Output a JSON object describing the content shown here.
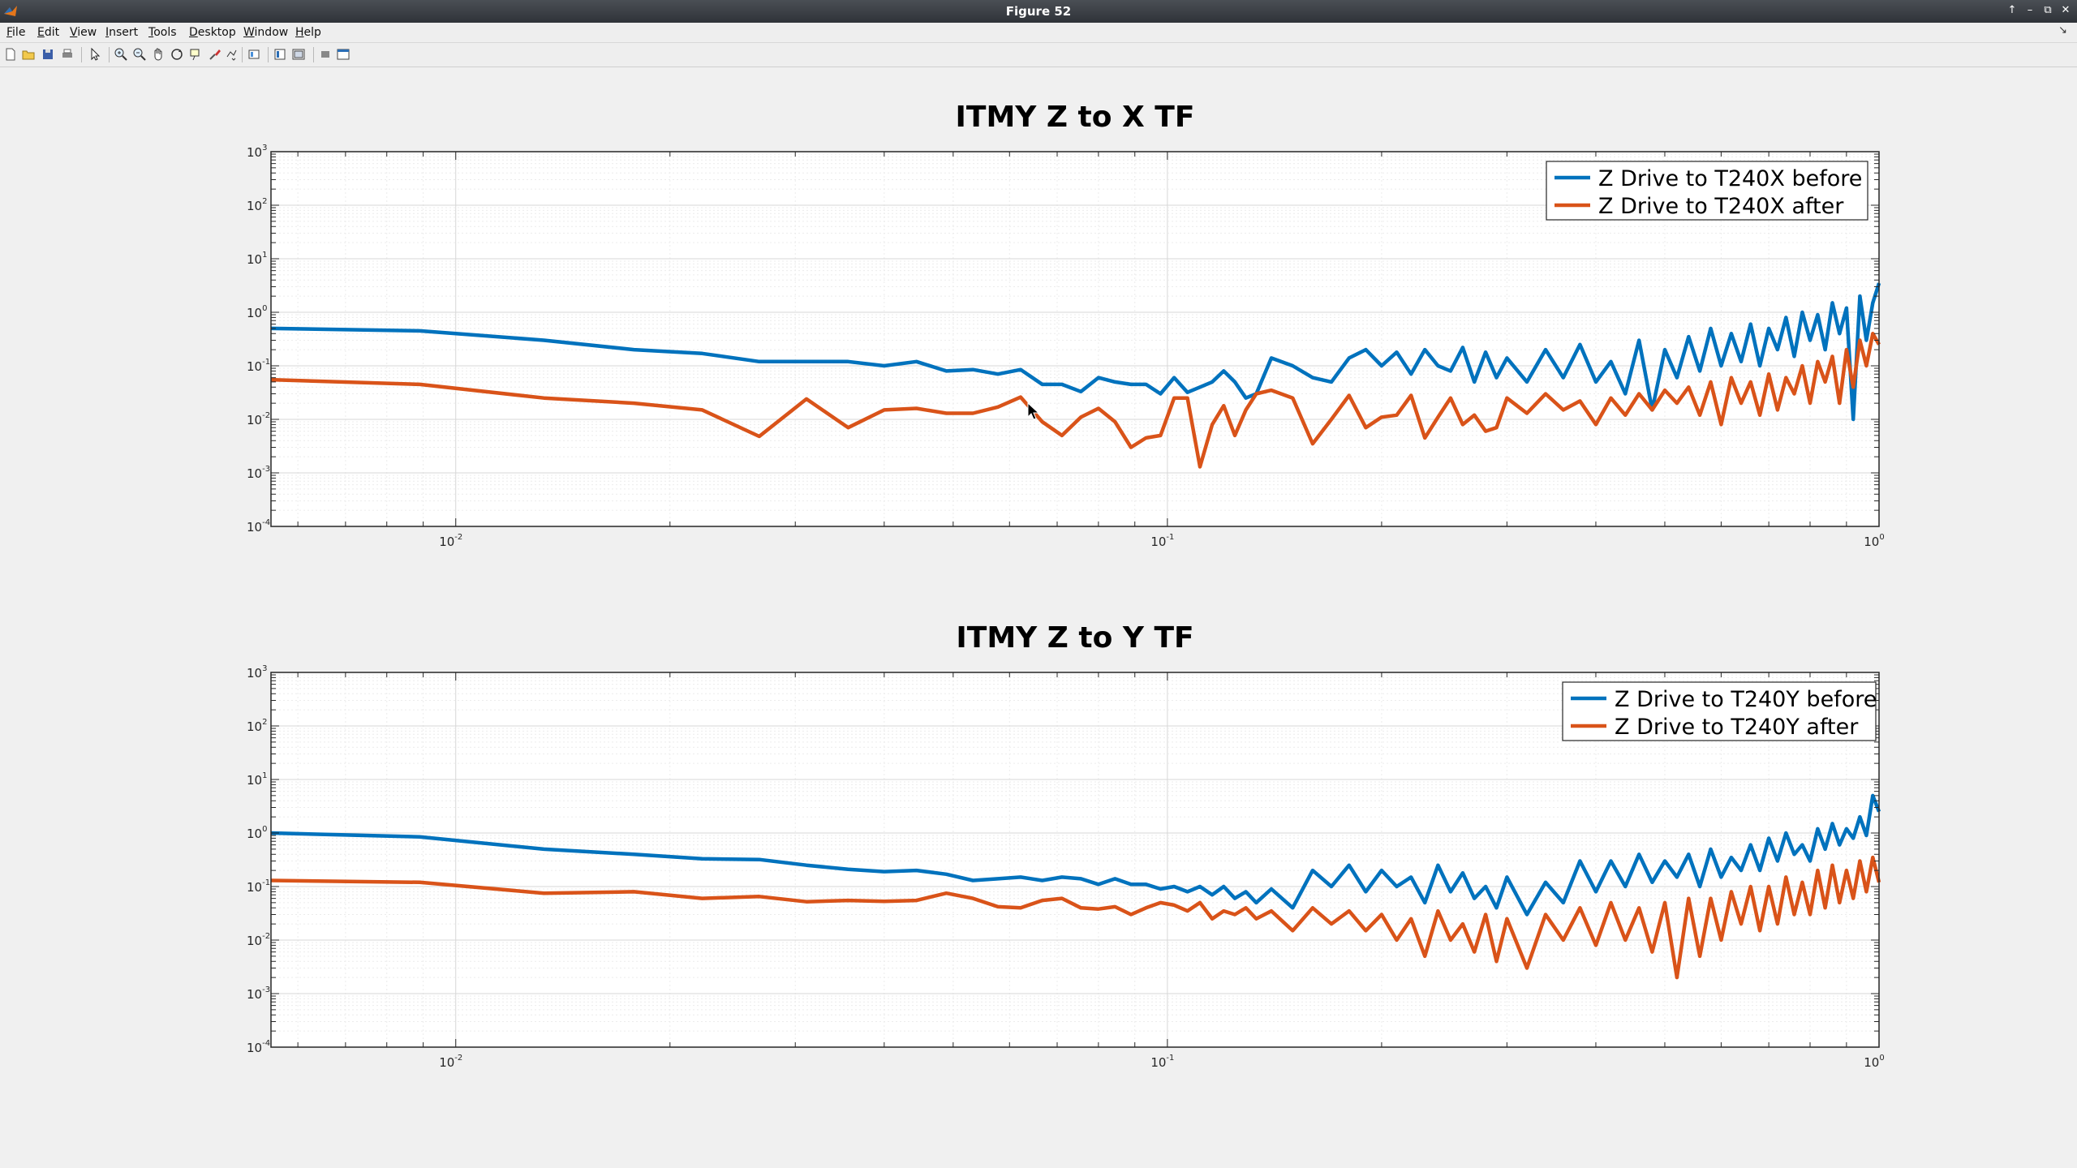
{
  "window": {
    "title": "Figure 52"
  },
  "menu": [
    {
      "label": "File",
      "u": "F",
      "rest": "ile"
    },
    {
      "label": "Edit",
      "u": "E",
      "rest": "dit"
    },
    {
      "label": "View",
      "u": "V",
      "rest": "iew"
    },
    {
      "label": "Insert",
      "u": "I",
      "rest": "nsert"
    },
    {
      "label": "Tools",
      "u": "T",
      "rest": "ools"
    },
    {
      "label": "Desktop",
      "u": "D",
      "rest": "esktop"
    },
    {
      "label": "Window",
      "u": "W",
      "rest": "indow"
    },
    {
      "label": "Help",
      "u": "H",
      "rest": "elp"
    }
  ],
  "toolbar_icons": [
    "new-figure-icon",
    "open-file-icon",
    "save-icon",
    "print-icon",
    "pointer-icon",
    "zoom-in-icon",
    "zoom-out-icon",
    "pan-icon",
    "rotate-icon",
    "data-cursor-icon",
    "brush-icon",
    "link-plot-icon",
    "colorbar-icon",
    "legend-icon",
    "hide-plot-tools-icon",
    "show-plot-tools-icon"
  ],
  "colors": {
    "before": "#0072BD",
    "after": "#D95319",
    "grid": "#dcdcdc",
    "axes_bg": "#ffffff"
  },
  "chart_data": [
    {
      "type": "line",
      "title": "ITMY Z to X TF",
      "xscale": "log",
      "yscale": "log",
      "xlim": [
        0.0055,
        1.0
      ],
      "ylim": [
        0.0001,
        1000
      ],
      "grid": true,
      "legend_position": "top-right",
      "xticks": [
        {
          "base": "10",
          "exp": "-2"
        },
        {
          "base": "10",
          "exp": "-1"
        },
        {
          "base": "10",
          "exp": "0"
        }
      ],
      "yticks": [
        {
          "base": "10",
          "exp": "-4"
        },
        {
          "base": "10",
          "exp": "-3"
        },
        {
          "base": "10",
          "exp": "-2"
        },
        {
          "base": "10",
          "exp": "-1"
        },
        {
          "base": "10",
          "exp": "0"
        },
        {
          "base": "10",
          "exp": "1"
        },
        {
          "base": "10",
          "exp": "2"
        },
        {
          "base": "10",
          "exp": "3"
        }
      ],
      "series": [
        {
          "name": "Z Drive to T240X before",
          "x": [
            0.0055,
            0.0089,
            0.0133,
            0.0178,
            0.0222,
            0.0267,
            0.0311,
            0.0356,
            0.04,
            0.0444,
            0.0489,
            0.0533,
            0.0578,
            0.0622,
            0.0667,
            0.0711,
            0.0756,
            0.08,
            0.0844,
            0.0889,
            0.0933,
            0.0978,
            0.1022,
            0.1067,
            0.1111,
            0.1156,
            0.12,
            0.1244,
            0.1289,
            0.1333,
            0.14,
            0.15,
            0.16,
            0.17,
            0.18,
            0.19,
            0.2,
            0.21,
            0.22,
            0.23,
            0.24,
            0.25,
            0.26,
            0.27,
            0.28,
            0.29,
            0.3,
            0.32,
            0.34,
            0.36,
            0.38,
            0.4,
            0.42,
            0.44,
            0.46,
            0.48,
            0.5,
            0.52,
            0.54,
            0.56,
            0.58,
            0.6,
            0.62,
            0.64,
            0.66,
            0.68,
            0.7,
            0.72,
            0.74,
            0.76,
            0.78,
            0.8,
            0.82,
            0.84,
            0.86,
            0.88,
            0.9,
            0.92,
            0.94,
            0.96,
            0.98,
            1.0
          ],
          "y": [
            0.5,
            0.45,
            0.3,
            0.2,
            0.17,
            0.12,
            0.12,
            0.12,
            0.1,
            0.12,
            0.08,
            0.085,
            0.07,
            0.085,
            0.045,
            0.045,
            0.033,
            0.06,
            0.05,
            0.045,
            0.045,
            0.03,
            0.06,
            0.032,
            0.04,
            0.05,
            0.08,
            0.05,
            0.025,
            0.03,
            0.14,
            0.1,
            0.06,
            0.05,
            0.14,
            0.2,
            0.1,
            0.18,
            0.07,
            0.2,
            0.1,
            0.08,
            0.22,
            0.05,
            0.18,
            0.06,
            0.14,
            0.05,
            0.2,
            0.06,
            0.25,
            0.05,
            0.12,
            0.03,
            0.3,
            0.015,
            0.2,
            0.06,
            0.35,
            0.08,
            0.5,
            0.1,
            0.4,
            0.12,
            0.6,
            0.1,
            0.5,
            0.2,
            0.8,
            0.15,
            1.0,
            0.3,
            0.9,
            0.2,
            1.5,
            0.4,
            1.2,
            0.01,
            2.0,
            0.3,
            1.5,
            3.5
          ]
        },
        {
          "name": "Z Drive to T240X after",
          "x": [
            0.0055,
            0.0089,
            0.0133,
            0.0178,
            0.0222,
            0.0267,
            0.0311,
            0.0356,
            0.04,
            0.0444,
            0.0489,
            0.0533,
            0.0578,
            0.0622,
            0.0667,
            0.0711,
            0.0756,
            0.08,
            0.0844,
            0.0889,
            0.0933,
            0.0978,
            0.1022,
            0.1067,
            0.1111,
            0.1156,
            0.12,
            0.1244,
            0.1289,
            0.1333,
            0.14,
            0.15,
            0.16,
            0.17,
            0.18,
            0.19,
            0.2,
            0.21,
            0.22,
            0.23,
            0.24,
            0.25,
            0.26,
            0.27,
            0.28,
            0.29,
            0.3,
            0.32,
            0.34,
            0.36,
            0.38,
            0.4,
            0.42,
            0.44,
            0.46,
            0.48,
            0.5,
            0.52,
            0.54,
            0.56,
            0.58,
            0.6,
            0.62,
            0.64,
            0.66,
            0.68,
            0.7,
            0.72,
            0.74,
            0.76,
            0.78,
            0.8,
            0.82,
            0.84,
            0.86,
            0.88,
            0.9,
            0.92,
            0.94,
            0.96,
            0.98,
            1.0
          ],
          "y": [
            0.055,
            0.045,
            0.025,
            0.02,
            0.015,
            0.0048,
            0.024,
            0.007,
            0.015,
            0.016,
            0.013,
            0.013,
            0.017,
            0.026,
            0.009,
            0.005,
            0.011,
            0.016,
            0.009,
            0.003,
            0.0045,
            0.005,
            0.025,
            0.025,
            0.0013,
            0.008,
            0.018,
            0.005,
            0.015,
            0.03,
            0.035,
            0.025,
            0.0035,
            0.01,
            0.028,
            0.007,
            0.011,
            0.012,
            0.028,
            0.0045,
            0.011,
            0.025,
            0.008,
            0.012,
            0.006,
            0.007,
            0.025,
            0.013,
            0.03,
            0.015,
            0.022,
            0.008,
            0.025,
            0.012,
            0.03,
            0.015,
            0.035,
            0.02,
            0.04,
            0.012,
            0.05,
            0.008,
            0.06,
            0.02,
            0.05,
            0.012,
            0.07,
            0.015,
            0.06,
            0.03,
            0.1,
            0.02,
            0.12,
            0.05,
            0.15,
            0.02,
            0.2,
            0.04,
            0.3,
            0.1,
            0.4,
            0.25
          ]
        }
      ]
    },
    {
      "type": "line",
      "title": "ITMY Z to Y TF",
      "xscale": "log",
      "yscale": "log",
      "xlim": [
        0.0055,
        1.0
      ],
      "ylim": [
        0.0001,
        1000
      ],
      "grid": true,
      "legend_position": "top-right",
      "xticks": [
        {
          "base": "10",
          "exp": "-2"
        },
        {
          "base": "10",
          "exp": "-1"
        },
        {
          "base": "10",
          "exp": "0"
        }
      ],
      "yticks": [
        {
          "base": "10",
          "exp": "-4"
        },
        {
          "base": "10",
          "exp": "-3"
        },
        {
          "base": "10",
          "exp": "-2"
        },
        {
          "base": "10",
          "exp": "-1"
        },
        {
          "base": "10",
          "exp": "0"
        },
        {
          "base": "10",
          "exp": "1"
        },
        {
          "base": "10",
          "exp": "2"
        },
        {
          "base": "10",
          "exp": "3"
        }
      ],
      "series": [
        {
          "name": "Z Drive to T240Y before",
          "x": [
            0.0055,
            0.0089,
            0.0133,
            0.0178,
            0.0222,
            0.0267,
            0.0311,
            0.0356,
            0.04,
            0.0444,
            0.0489,
            0.0533,
            0.0578,
            0.0622,
            0.0667,
            0.0711,
            0.0756,
            0.08,
            0.0844,
            0.0889,
            0.0933,
            0.0978,
            0.1022,
            0.1067,
            0.1111,
            0.1156,
            0.12,
            0.1244,
            0.1289,
            0.1333,
            0.14,
            0.15,
            0.16,
            0.17,
            0.18,
            0.19,
            0.2,
            0.21,
            0.22,
            0.23,
            0.24,
            0.25,
            0.26,
            0.27,
            0.28,
            0.29,
            0.3,
            0.32,
            0.34,
            0.36,
            0.38,
            0.4,
            0.42,
            0.44,
            0.46,
            0.48,
            0.5,
            0.52,
            0.54,
            0.56,
            0.58,
            0.6,
            0.62,
            0.64,
            0.66,
            0.68,
            0.7,
            0.72,
            0.74,
            0.76,
            0.78,
            0.8,
            0.82,
            0.84,
            0.86,
            0.88,
            0.9,
            0.92,
            0.94,
            0.96,
            0.98,
            1.0
          ],
          "y": [
            1.0,
            0.85,
            0.5,
            0.4,
            0.33,
            0.32,
            0.25,
            0.21,
            0.19,
            0.2,
            0.17,
            0.13,
            0.14,
            0.15,
            0.13,
            0.15,
            0.14,
            0.11,
            0.14,
            0.11,
            0.11,
            0.09,
            0.1,
            0.08,
            0.1,
            0.07,
            0.1,
            0.06,
            0.08,
            0.05,
            0.09,
            0.04,
            0.2,
            0.1,
            0.25,
            0.08,
            0.2,
            0.1,
            0.15,
            0.05,
            0.25,
            0.08,
            0.18,
            0.06,
            0.1,
            0.04,
            0.15,
            0.03,
            0.12,
            0.05,
            0.3,
            0.08,
            0.3,
            0.1,
            0.4,
            0.12,
            0.3,
            0.15,
            0.4,
            0.1,
            0.5,
            0.15,
            0.35,
            0.2,
            0.6,
            0.2,
            0.8,
            0.3,
            1.0,
            0.4,
            0.6,
            0.3,
            1.2,
            0.5,
            1.5,
            0.6,
            1.2,
            0.8,
            2.0,
            0.9,
            5.0,
            2.5
          ]
        },
        {
          "name": "Z Drive to T240Y after",
          "x": [
            0.0055,
            0.0089,
            0.0133,
            0.0178,
            0.0222,
            0.0267,
            0.0311,
            0.0356,
            0.04,
            0.0444,
            0.0489,
            0.0533,
            0.0578,
            0.0622,
            0.0667,
            0.0711,
            0.0756,
            0.08,
            0.0844,
            0.0889,
            0.0933,
            0.0978,
            0.1022,
            0.1067,
            0.1111,
            0.1156,
            0.12,
            0.1244,
            0.1289,
            0.1333,
            0.14,
            0.15,
            0.16,
            0.17,
            0.18,
            0.19,
            0.2,
            0.21,
            0.22,
            0.23,
            0.24,
            0.25,
            0.26,
            0.27,
            0.28,
            0.29,
            0.3,
            0.32,
            0.34,
            0.36,
            0.38,
            0.4,
            0.42,
            0.44,
            0.46,
            0.48,
            0.5,
            0.52,
            0.54,
            0.56,
            0.58,
            0.6,
            0.62,
            0.64,
            0.66,
            0.68,
            0.7,
            0.72,
            0.74,
            0.76,
            0.78,
            0.8,
            0.82,
            0.84,
            0.86,
            0.88,
            0.9,
            0.92,
            0.94,
            0.96,
            0.98,
            1.0
          ],
          "y": [
            0.13,
            0.12,
            0.075,
            0.08,
            0.06,
            0.065,
            0.052,
            0.055,
            0.053,
            0.055,
            0.075,
            0.06,
            0.042,
            0.04,
            0.055,
            0.06,
            0.04,
            0.038,
            0.042,
            0.03,
            0.04,
            0.05,
            0.045,
            0.035,
            0.05,
            0.025,
            0.035,
            0.03,
            0.04,
            0.025,
            0.035,
            0.015,
            0.04,
            0.02,
            0.035,
            0.015,
            0.03,
            0.01,
            0.025,
            0.005,
            0.035,
            0.01,
            0.02,
            0.006,
            0.03,
            0.004,
            0.025,
            0.003,
            0.03,
            0.01,
            0.04,
            0.008,
            0.05,
            0.01,
            0.04,
            0.006,
            0.05,
            0.002,
            0.06,
            0.005,
            0.06,
            0.01,
            0.08,
            0.02,
            0.1,
            0.015,
            0.1,
            0.02,
            0.15,
            0.03,
            0.12,
            0.03,
            0.2,
            0.04,
            0.25,
            0.05,
            0.2,
            0.06,
            0.3,
            0.08,
            0.35,
            0.12
          ]
        }
      ]
    }
  ]
}
